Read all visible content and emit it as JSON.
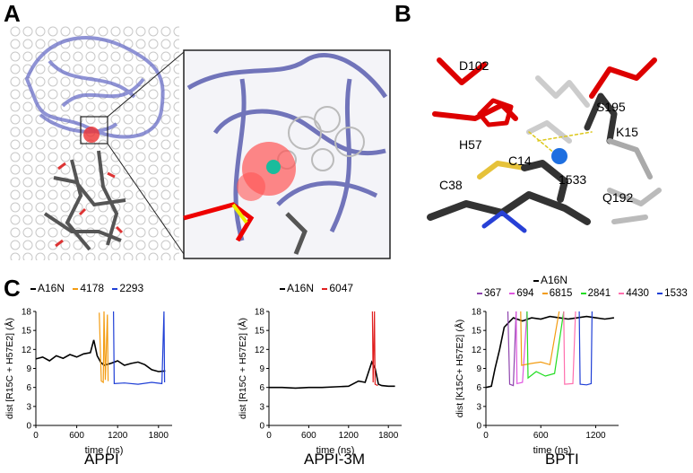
{
  "panels": {
    "a": {
      "letter": "A"
    },
    "b": {
      "letter": "B",
      "labels": [
        "D102",
        "S195",
        "H57",
        "K15",
        "C14",
        "1533",
        "C38",
        "Q192"
      ]
    },
    "c": {
      "letter": "C"
    }
  },
  "chart_data": [
    {
      "type": "line",
      "title": "APPI",
      "xlabel": "time (ns)",
      "ylabel": "dist [R15C + H57E2] (Å)",
      "xlim": [
        0,
        2000
      ],
      "ylim": [
        0,
        18
      ],
      "xticks": [
        "0",
        "600",
        "1200",
        "1800"
      ],
      "yticks": [
        "0",
        "3",
        "6",
        "9",
        "12",
        "15",
        "18"
      ],
      "legend": [
        "A16N",
        "4178",
        "2293"
      ],
      "series": [
        {
          "name": "A16N",
          "color": "#000000",
          "x": [
            0,
            100,
            200,
            300,
            400,
            500,
            600,
            700,
            800,
            850,
            900,
            950,
            1000,
            1100,
            1200,
            1300,
            1400,
            1500,
            1600,
            1700,
            1800,
            1900
          ],
          "y": [
            10.5,
            10.8,
            10.2,
            11.0,
            10.6,
            11.2,
            10.8,
            11.3,
            11.5,
            13.5,
            11.0,
            10.0,
            9.5,
            9.8,
            10.2,
            9.5,
            9.8,
            10.0,
            9.6,
            8.8,
            8.5,
            8.6
          ]
        },
        {
          "name": "4178",
          "color": "#f39c12",
          "x": [
            930,
            960,
            990,
            1000,
            1020,
            1050,
            1060
          ],
          "y": [
            17.8,
            7.0,
            6.8,
            18.0,
            7.2,
            17.5,
            7.0
          ]
        },
        {
          "name": "2293",
          "color": "#1f3fd6",
          "x": [
            1140,
            1150,
            1300,
            1500,
            1700,
            1850,
            1880,
            1890
          ],
          "y": [
            18.0,
            6.6,
            6.7,
            6.5,
            6.8,
            6.6,
            18.0,
            6.8
          ]
        }
      ]
    },
    {
      "type": "line",
      "title": "APPI-3M",
      "xlabel": "time (ns)",
      "ylabel": "dist [R15C + H57E2] (Å)",
      "xlim": [
        0,
        2000
      ],
      "ylim": [
        0,
        18
      ],
      "xticks": [
        "0",
        "600",
        "1200",
        "1800"
      ],
      "yticks": [
        "0",
        "3",
        "6",
        "9",
        "12",
        "15",
        "18"
      ],
      "legend": [
        "A16N",
        "6047"
      ],
      "series": [
        {
          "name": "A16N",
          "color": "#000000",
          "x": [
            0,
            200,
            400,
            600,
            800,
            1000,
            1200,
            1350,
            1450,
            1550,
            1600,
            1650,
            1700,
            1800,
            1900
          ],
          "y": [
            6.0,
            6.0,
            5.9,
            6.0,
            6.0,
            6.1,
            6.2,
            7.0,
            6.8,
            10.0,
            9.0,
            6.5,
            6.3,
            6.2,
            6.2
          ]
        },
        {
          "name": "6047",
          "color": "#e02020",
          "x": [
            1560,
            1570,
            1590,
            1600,
            1620,
            1640
          ],
          "y": [
            18.0,
            6.8,
            18.0,
            6.5,
            6.4,
            6.3
          ]
        }
      ]
    },
    {
      "type": "line",
      "title": "BPTI",
      "xlabel": "time (ns)",
      "ylabel": "dist [K15C+ H57E2] (Å)",
      "xlim": [
        0,
        1450
      ],
      "ylim": [
        0,
        18
      ],
      "xticks": [
        "0",
        "600",
        "1200"
      ],
      "yticks": [
        "0",
        "3",
        "6",
        "9",
        "12",
        "15",
        "18"
      ],
      "legend": [
        "A16N",
        "367",
        "694",
        "6815",
        "2841",
        "4430",
        "1533"
      ],
      "series": [
        {
          "name": "A16N",
          "color": "#000000",
          "x": [
            0,
            60,
            100,
            150,
            200,
            300,
            400,
            500,
            600,
            700,
            800,
            900,
            1000,
            1100,
            1200,
            1300,
            1400
          ],
          "y": [
            6.0,
            6.2,
            9.0,
            12.0,
            15.5,
            17.0,
            16.5,
            17.0,
            16.8,
            17.2,
            17.0,
            16.8,
            17.0,
            17.2,
            17.0,
            16.8,
            17.0
          ]
        },
        {
          "name": "367",
          "color": "#8e44ad",
          "x": [
            240,
            260,
            300,
            330
          ],
          "y": [
            18.0,
            6.5,
            6.3,
            18.0
          ]
        },
        {
          "name": "694",
          "color": "#e056e0",
          "x": [
            330,
            340,
            400,
            450
          ],
          "y": [
            18.0,
            6.6,
            6.8,
            18.0
          ]
        },
        {
          "name": "6815",
          "color": "#f39c12",
          "x": [
            380,
            390,
            500,
            600,
            700,
            800
          ],
          "y": [
            18.0,
            9.5,
            9.8,
            10.0,
            9.6,
            18.0
          ]
        },
        {
          "name": "2841",
          "color": "#22dd22",
          "x": [
            450,
            460,
            550,
            650,
            750,
            850
          ],
          "y": [
            18.0,
            7.5,
            8.5,
            7.8,
            8.2,
            18.0
          ]
        },
        {
          "name": "4430",
          "color": "#ff6fae",
          "x": [
            850,
            860,
            950,
            980
          ],
          "y": [
            18.0,
            6.5,
            6.6,
            18.0
          ]
        },
        {
          "name": "1533",
          "color": "#1f3fd6",
          "x": [
            1020,
            1030,
            1100,
            1150,
            1160
          ],
          "y": [
            18.0,
            6.5,
            6.4,
            6.6,
            18.0
          ]
        }
      ]
    }
  ]
}
